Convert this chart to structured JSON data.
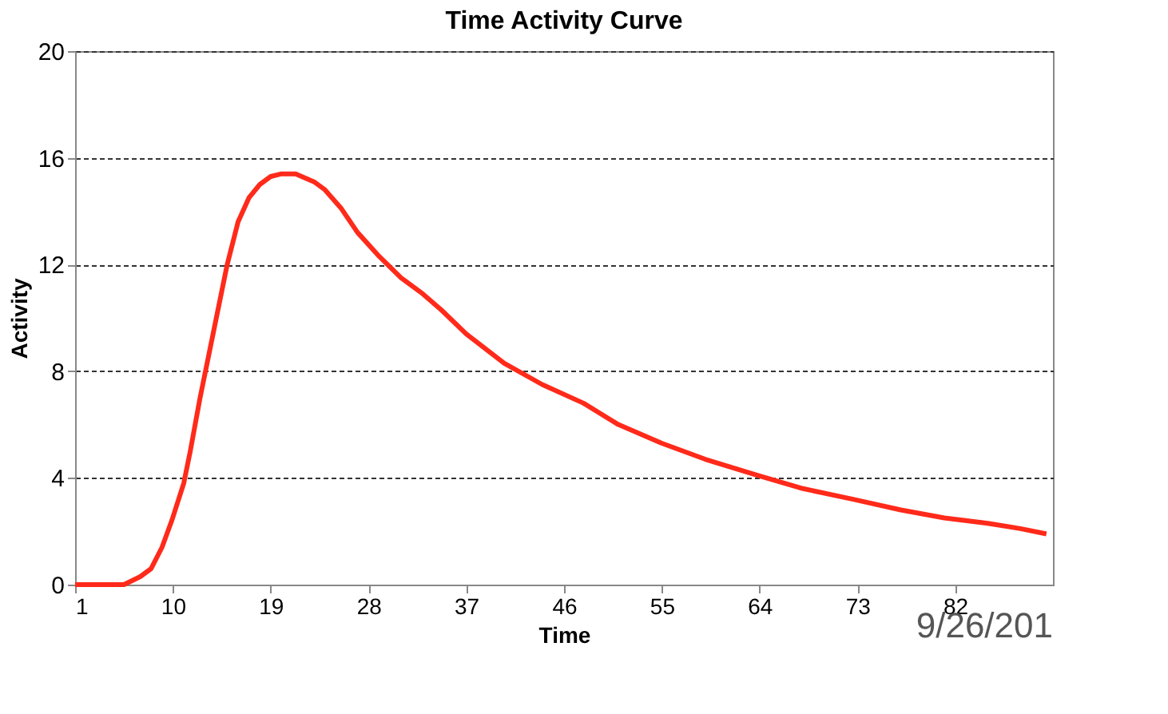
{
  "chart_data": {
    "type": "line",
    "title": "Time Activity Curve",
    "xlabel": "Time",
    "ylabel": "Activity",
    "x": [
      1,
      3,
      5.5,
      7,
      8,
      9,
      9.9,
      11,
      11.6,
      12.5,
      13.5,
      15,
      16,
      17,
      18,
      19,
      20,
      21.3,
      23,
      24,
      25.5,
      27,
      29,
      31,
      33,
      34.7,
      37,
      40.5,
      44,
      47.8,
      51,
      55,
      59,
      63.8,
      68,
      72.6,
      77,
      81,
      85,
      88,
      90.4
    ],
    "series": [
      {
        "color": "#ff2a1a",
        "values": [
          0,
          0,
          0,
          0.3,
          0.6,
          1.4,
          2.4,
          3.8,
          5,
          7,
          9,
          12,
          13.6,
          14.5,
          15,
          15.3,
          15.4,
          15.4,
          15.1,
          14.8,
          14.1,
          13.2,
          12.3,
          11.5,
          10.9,
          10.3,
          9.4,
          8.3,
          7.5,
          6.8,
          6.0,
          5.3,
          4.7,
          4.1,
          3.6,
          3.2,
          2.8,
          2.5,
          2.3,
          2.1,
          1.9
        ]
      }
    ],
    "xlim": [
      1,
      91
    ],
    "xticks": [
      1,
      10,
      19,
      28,
      37,
      46,
      55,
      64,
      73,
      82
    ],
    "ylim": [
      0,
      20
    ],
    "yticks": [
      0,
      4,
      8,
      12,
      16,
      20
    ],
    "grid": "y",
    "legend": false,
    "marker": "none",
    "line_style": "solid",
    "annotations": [
      "9/26/201"
    ]
  }
}
